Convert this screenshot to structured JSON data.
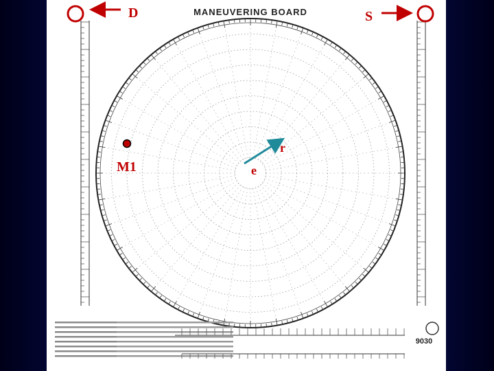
{
  "header": {
    "title": "MANEUVERING BOARD"
  },
  "labels": {
    "d": "D",
    "s": "S",
    "m1": "M1",
    "e": "e",
    "r": "r"
  },
  "footer": {
    "code": "9030"
  }
}
